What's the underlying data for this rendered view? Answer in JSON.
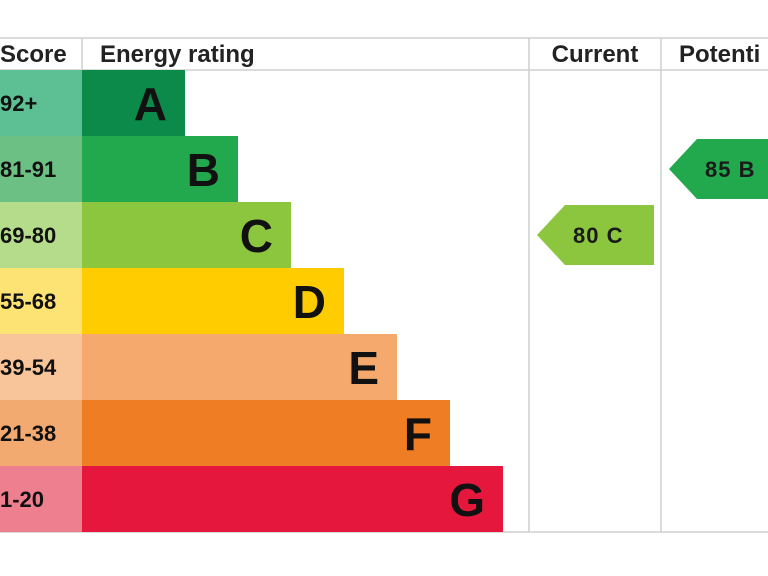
{
  "chart_data": {
    "type": "bar",
    "headers": {
      "score": "Score",
      "rating": "Energy rating",
      "current": "Current",
      "potential": "Potenti"
    },
    "bands": [
      {
        "score": "92+",
        "letter": "A",
        "color": "#0c8a4a",
        "score_bg": "#5dbf94"
      },
      {
        "score": "81-91",
        "letter": "B",
        "color": "#22a84d",
        "score_bg": "#6cc083"
      },
      {
        "score": "69-80",
        "letter": "C",
        "color": "#8cc63f",
        "score_bg": "#b5dc8a"
      },
      {
        "score": "55-68",
        "letter": "D",
        "color": "#ffcc00",
        "score_bg": "#fde373"
      },
      {
        "score": "39-54",
        "letter": "E",
        "color": "#f5a96c",
        "score_bg": "#f8c49a"
      },
      {
        "score": "21-38",
        "letter": "F",
        "color": "#ee7d23",
        "score_bg": "#f3aa70"
      },
      {
        "score": "1-20",
        "letter": "G",
        "color": "#e5173d",
        "score_bg": "#ee7f8f"
      }
    ],
    "current": {
      "value": 80,
      "band": "C",
      "label": "80  C",
      "color": "#8cc63f"
    },
    "potential": {
      "value": 85,
      "band": "B",
      "label": "85  B",
      "color": "#22a84d"
    }
  }
}
